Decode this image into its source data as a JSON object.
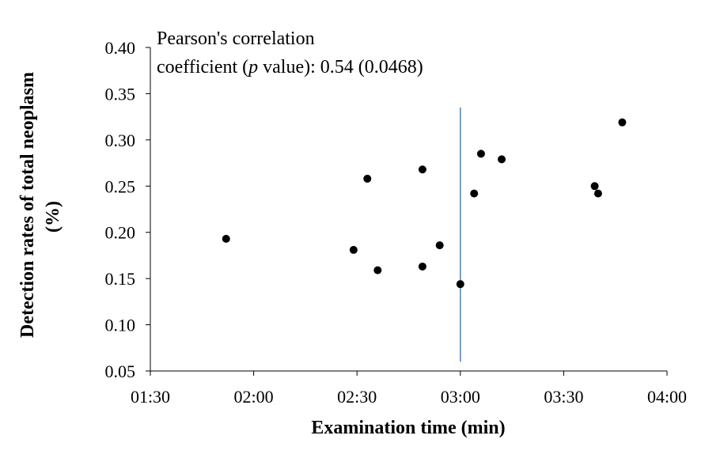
{
  "chart_data": {
    "type": "scatter",
    "xlabel": "Examination time (min)",
    "ylabel_line1": "Detection rates of total neoplasm",
    "ylabel_line2": "(%)",
    "xlim": [
      "01:30",
      "04:00"
    ],
    "ylim": [
      0.05,
      0.4
    ],
    "x_ticks": [
      "01:30",
      "02:00",
      "02:30",
      "03:00",
      "03:30",
      "04:00"
    ],
    "y_ticks": [
      "0.05",
      "0.10",
      "0.15",
      "0.20",
      "0.25",
      "0.30",
      "0.35",
      "0.40"
    ],
    "grid": false,
    "annotation": {
      "line1": "Pearson's correlation",
      "line2_prefix": "coefficient (",
      "line2_italic": "p",
      "line2_suffix": " value): 0.54 (0.0468)"
    },
    "reference_line": {
      "x": "03:00",
      "y_range": [
        0.06,
        0.335
      ],
      "color": "#4f81bd"
    },
    "points": [
      {
        "x": "01:52",
        "y": 0.193
      },
      {
        "x": "02:29",
        "y": 0.181
      },
      {
        "x": "02:33",
        "y": 0.258
      },
      {
        "x": "02:36",
        "y": 0.159
      },
      {
        "x": "02:49",
        "y": 0.163
      },
      {
        "x": "02:49",
        "y": 0.268
      },
      {
        "x": "02:54",
        "y": 0.186
      },
      {
        "x": "03:00",
        "y": 0.144
      },
      {
        "x": "03:04",
        "y": 0.242
      },
      {
        "x": "03:06",
        "y": 0.285
      },
      {
        "x": "03:12",
        "y": 0.279
      },
      {
        "x": "03:39",
        "y": 0.25
      },
      {
        "x": "03:40",
        "y": 0.242
      },
      {
        "x": "03:47",
        "y": 0.319
      }
    ],
    "colors": {
      "points": "#000000",
      "axis": "#000000"
    }
  }
}
